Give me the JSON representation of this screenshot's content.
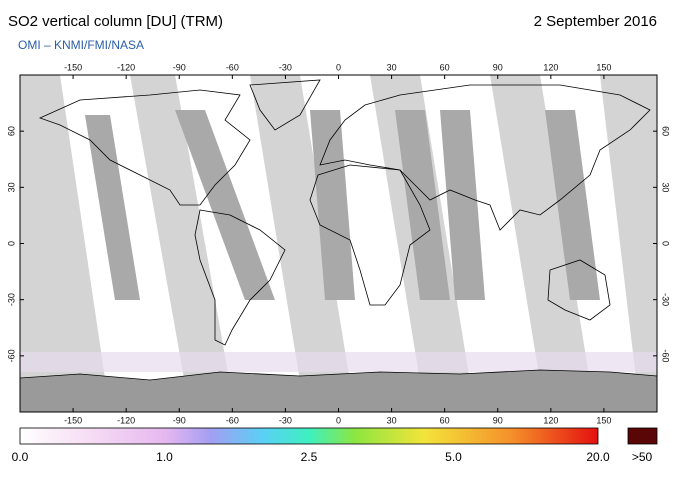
{
  "header": {
    "title": "SO2 vertical column [DU] (TRM)",
    "date": "2 September 2016",
    "subtitle": "OMI  –  KNMI/FMI/NASA"
  },
  "map": {
    "lonlim": [
      -180,
      180
    ],
    "latlim": [
      -90,
      90
    ],
    "lon_ticks": [
      -150,
      -120,
      -90,
      -60,
      -30,
      0,
      30,
      60,
      90,
      120,
      150
    ],
    "lat_ticks": [
      -60,
      -30,
      0,
      30,
      60
    ]
  },
  "colorbar": {
    "labels": [
      "0.0",
      "1.0",
      "2.5",
      "5.0",
      "20.0"
    ],
    "overflow_label": ">50"
  }
}
